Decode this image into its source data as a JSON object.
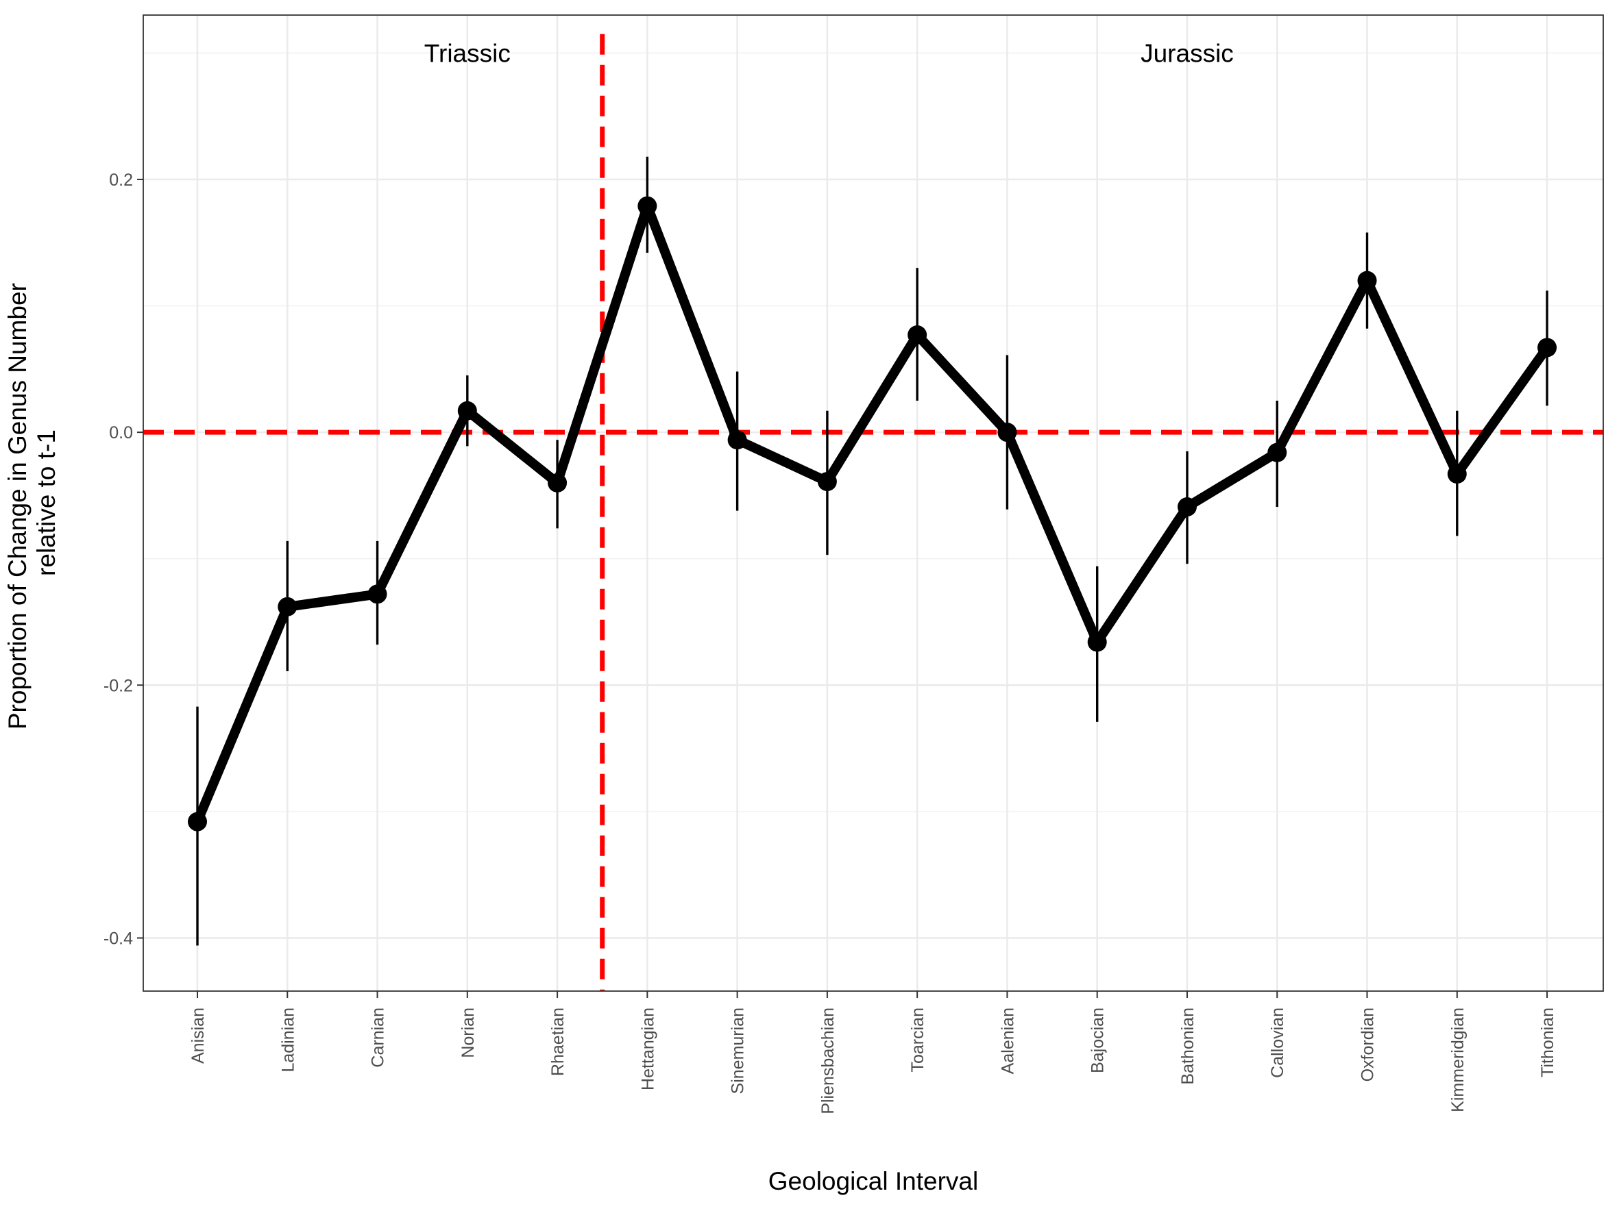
{
  "chart_data": {
    "type": "line",
    "xlabel": "Geological Interval",
    "ylabel_line1": "Proportion of Change in Genus Number",
    "ylabel_line2": "relative to t-1",
    "categories": [
      "Anisian",
      "Ladinian",
      "Carnian",
      "Norian",
      "Rhaetian",
      "Hettangian",
      "Sinemurian",
      "Pliensbachian",
      "Toarcian",
      "Aalenian",
      "Bajocian",
      "Bathonian",
      "Callovian",
      "Oxfordian",
      "Kimmeridgian",
      "Tithonian"
    ],
    "values": [
      -0.308,
      -0.138,
      -0.128,
      0.017,
      -0.04,
      0.179,
      -0.006,
      -0.039,
      0.077,
      0.0,
      -0.166,
      -0.059,
      -0.016,
      0.12,
      -0.033,
      0.067
    ],
    "error_low": [
      -0.406,
      -0.189,
      -0.168,
      -0.011,
      -0.076,
      0.142,
      -0.062,
      -0.097,
      0.025,
      -0.061,
      -0.229,
      -0.104,
      -0.059,
      0.082,
      -0.082,
      0.021
    ],
    "error_high": [
      -0.217,
      -0.086,
      -0.086,
      0.045,
      -0.006,
      0.218,
      0.048,
      0.017,
      0.13,
      0.061,
      -0.106,
      -0.015,
      0.025,
      0.158,
      0.017,
      0.112
    ],
    "ylim": [
      -0.442,
      0.33
    ],
    "yticks": [
      -0.4,
      -0.2,
      0.0,
      0.2
    ],
    "ytick_labels": [
      "-0.4",
      "-0.2",
      "0.0",
      "0.2"
    ],
    "grid": true,
    "reference_lines": {
      "horizontal_y": 0.0,
      "vertical_between": [
        "Rhaetian",
        "Hettangian"
      ],
      "color": "#ff0000"
    },
    "annotations": [
      {
        "text": "Triassic",
        "category_position": 3.0,
        "y": 0.3
      },
      {
        "text": "Jurassic",
        "category_position": 11.0,
        "y": 0.3
      }
    ],
    "line_color": "#000000"
  }
}
